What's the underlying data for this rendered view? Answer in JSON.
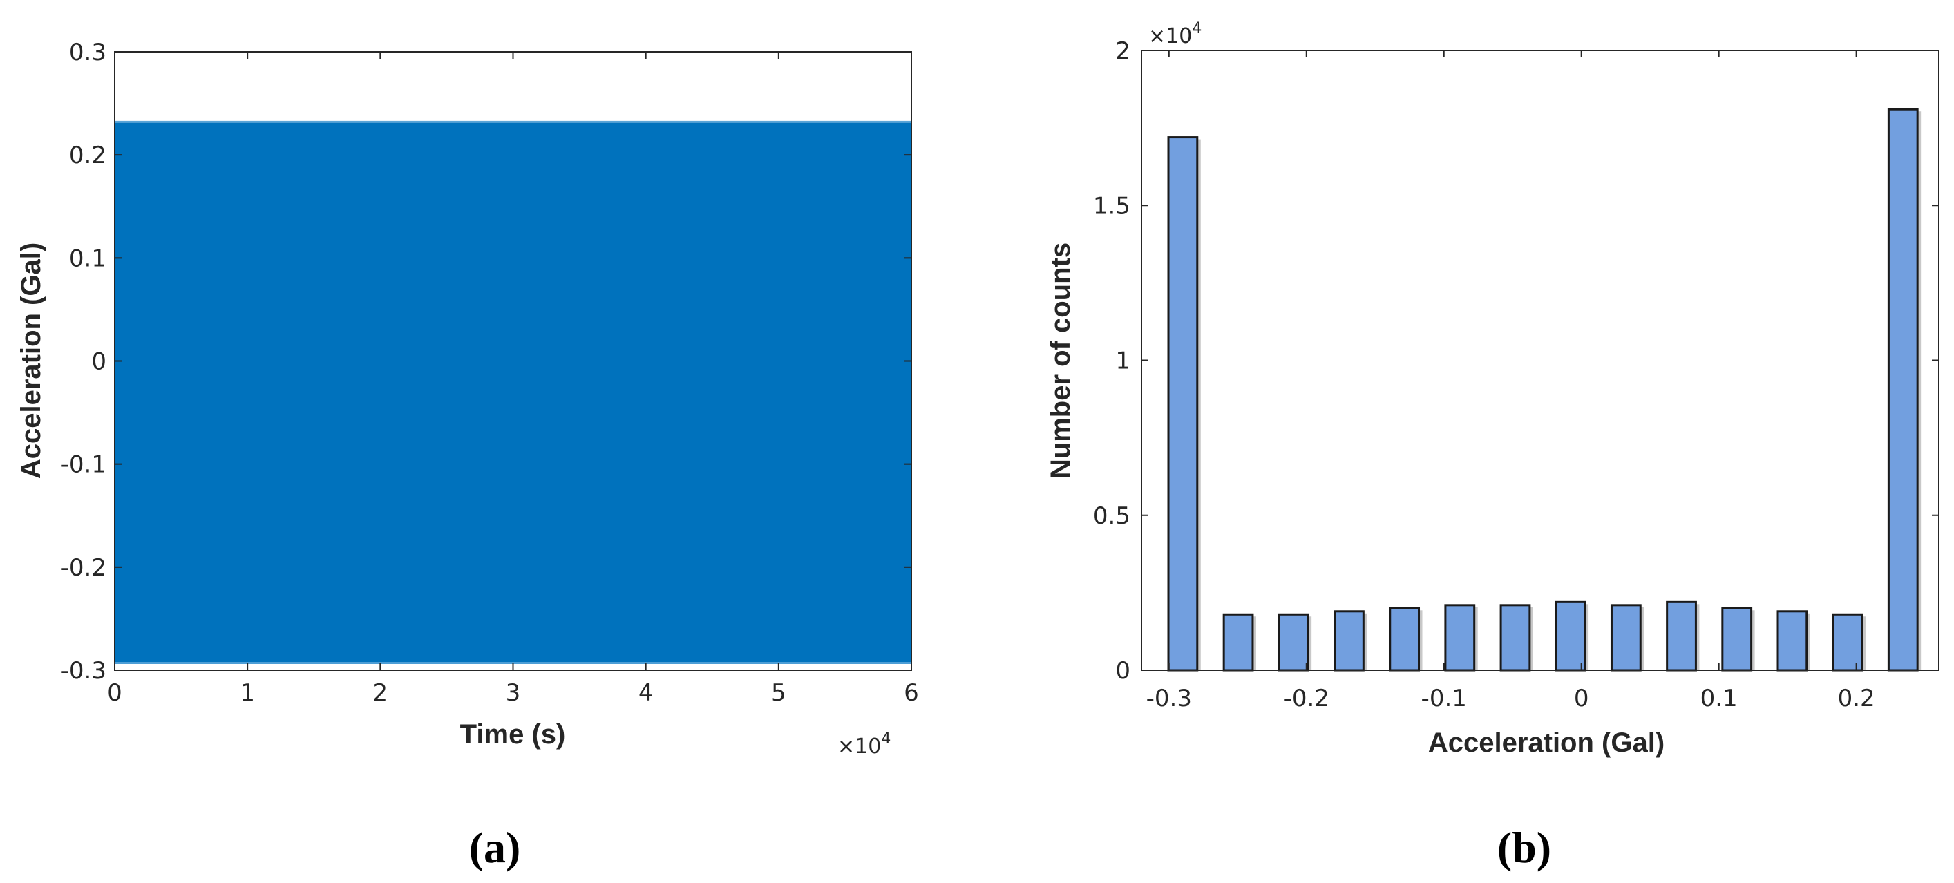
{
  "chart_data": [
    {
      "panel": "(a)",
      "type": "line",
      "xlabel": "Time (s)",
      "ylabel": "Acceleration (Gal)",
      "x_multiplier_base": "×10",
      "x_multiplier_exp": "4",
      "xlim": [
        0,
        6
      ],
      "ylim": [
        -0.3,
        0.3
      ],
      "xticks": [
        0,
        1,
        2,
        3,
        4,
        5,
        6
      ],
      "xtick_labels": [
        "0",
        "1",
        "2",
        "3",
        "4",
        "5",
        "6"
      ],
      "yticks": [
        -0.3,
        -0.2,
        -0.1,
        0,
        0.1,
        0.2,
        0.3
      ],
      "ytick_labels": [
        "-0.3",
        "-0.2",
        "-0.1",
        "0",
        "0.1",
        "0.2",
        "0.3"
      ],
      "series": [
        {
          "x_range": [
            0,
            6
          ],
          "y_min": -0.293,
          "y_max": 0.232,
          "description_in_units": "dense oscillating signal filling the envelope"
        }
      ],
      "colors": {
        "signal": "#0072bd"
      },
      "grid": false
    },
    {
      "panel": "(b)",
      "type": "bar",
      "xlabel": "Acceleration (Gal)",
      "ylabel": "Number of counts",
      "y_multiplier_base": "×10",
      "y_multiplier_exp": "4",
      "xlim": [
        -0.32,
        0.26
      ],
      "ylim": [
        0,
        2
      ],
      "xticks": [
        -0.3,
        -0.2,
        -0.1,
        0,
        0.1,
        0.2
      ],
      "xtick_labels": [
        "-0.3",
        "-0.2",
        "-0.1",
        "0",
        "0.1",
        "0.2"
      ],
      "yticks": [
        0,
        0.5,
        1,
        1.5,
        2
      ],
      "ytick_labels": [
        "0",
        "0.5",
        "1",
        "1.5",
        "2"
      ],
      "bar_width": 0.021,
      "x": [
        -0.2899,
        -0.2496,
        -0.2093,
        -0.169,
        -0.1287,
        -0.0884,
        -0.0481,
        -0.0078,
        0.0325,
        0.0728,
        0.1131,
        0.1534,
        0.1937,
        0.234
      ],
      "values": [
        1.72,
        0.18,
        0.18,
        0.19,
        0.2,
        0.21,
        0.21,
        0.22,
        0.21,
        0.22,
        0.2,
        0.19,
        0.18,
        1.81
      ],
      "colors": {
        "bar": "#729fdf",
        "edge": "#1a1a1a"
      },
      "grid": false
    }
  ],
  "labels": {
    "panel_a": "(a)",
    "panel_b": "(b)"
  }
}
